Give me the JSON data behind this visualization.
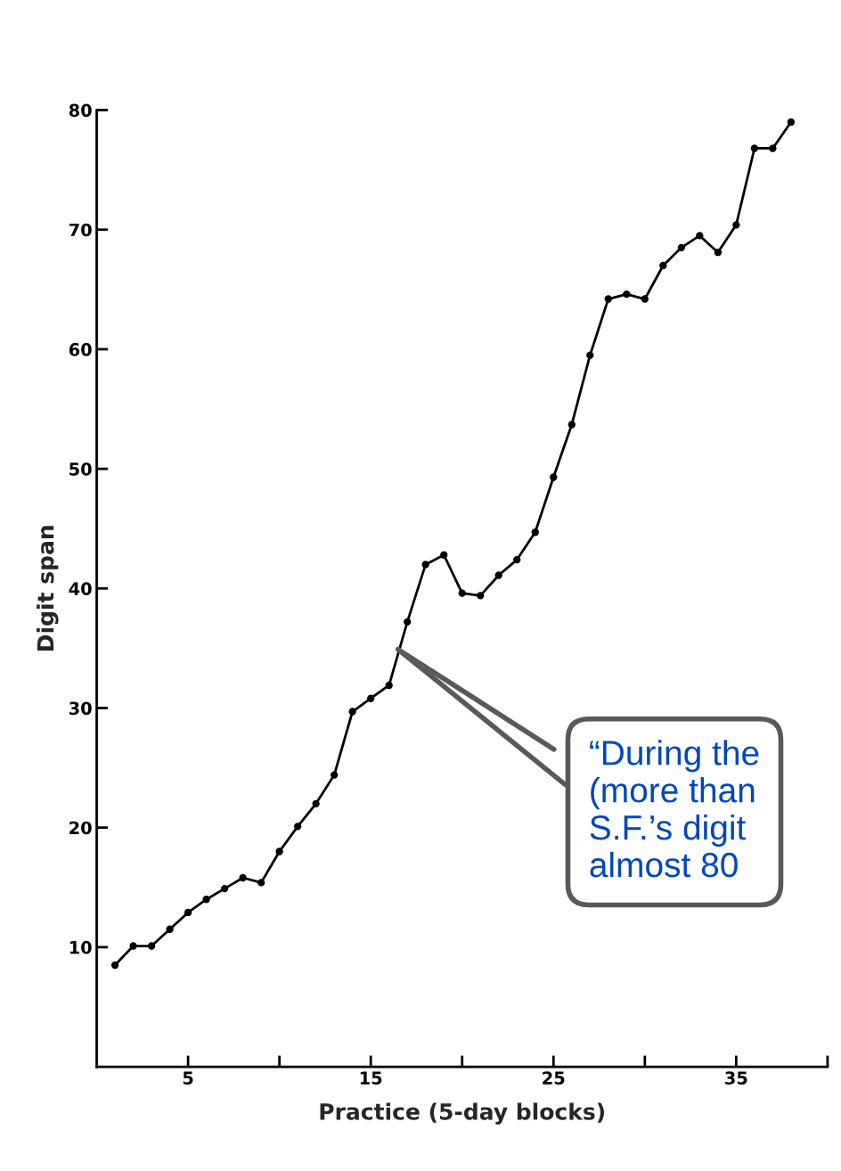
{
  "chart_data": {
    "type": "line",
    "xlabel": "Practice (5-day blocks)",
    "ylabel": "Digit span",
    "x": [
      1,
      2,
      3,
      4,
      5,
      6,
      7,
      8,
      9,
      10,
      11,
      12,
      13,
      14,
      15,
      16,
      17,
      18,
      19,
      20,
      21,
      22,
      23,
      24,
      25,
      26,
      27,
      28,
      29,
      30,
      31,
      32,
      33,
      34,
      35,
      36,
      37,
      38
    ],
    "series": [
      {
        "color": "#000000",
        "values": [
          8.5,
          10.1,
          10.1,
          11.5,
          12.9,
          14.0,
          14.9,
          15.8,
          15.4,
          18.0,
          20.1,
          22.0,
          24.4,
          29.7,
          30.8,
          31.9,
          37.2,
          42.0,
          42.8,
          39.6,
          39.4,
          41.1,
          42.4,
          44.7,
          49.3,
          53.7,
          59.5,
          64.2,
          64.6,
          64.2,
          67.0,
          68.5,
          69.5,
          68.1,
          70.4,
          76.8,
          76.8,
          79.0
        ]
      }
    ],
    "xlim": [
      0,
      40
    ],
    "ylim": [
      0,
      80
    ],
    "xticks": [
      5,
      {
        "value": 10,
        "label": null
      },
      15,
      {
        "value": 20,
        "label": null
      },
      25,
      {
        "value": 30,
        "label": null
      },
      35,
      {
        "value": 40,
        "label": null
      }
    ],
    "yticks": [
      10,
      20,
      30,
      40,
      50,
      60,
      70,
      80
    ],
    "marker": "circle",
    "line_style": "solid",
    "grid": false,
    "legend": false,
    "annotations": [
      {
        "text": "“During the\n(more than\nS.F.’s digit\nalmost 80",
        "x": 16.5,
        "y": 34.9
      }
    ]
  }
}
